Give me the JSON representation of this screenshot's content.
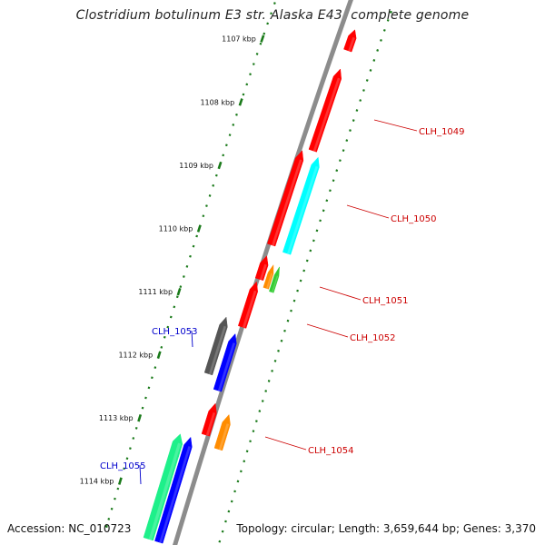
{
  "title": "Clostridium botulinum E3 str. Alaska E43, complete genome",
  "accession": "Accession: NC_010723",
  "summary": "Topology: circular; Length: 3,659,644 bp; Genes: 3,370",
  "ticks": [
    "1107 kbp",
    "1108 kbp",
    "1109 kbp",
    "1110 kbp",
    "1111 kbp",
    "1112 kbp",
    "1113 kbp",
    "1114 kbp"
  ],
  "genes": [
    {
      "name": "",
      "strand": "plus",
      "color": "#ff0000",
      "start": 1106.42,
      "end": 1106.75
    },
    {
      "name": "CLH_1049",
      "strand": "plus",
      "color": "#ff0000",
      "start": 1107.05,
      "end": 1108.35
    },
    {
      "name": "CLH_1050",
      "strand": "plus",
      "color": "#ff0000",
      "start": 1108.4,
      "end": 1109.9
    },
    {
      "name": "",
      "strand": "plus",
      "color": "#00ffff",
      "start": 1108.42,
      "end": 1109.95
    },
    {
      "name": "",
      "strand": "plus",
      "color": "#ff0000",
      "start": 1110.08,
      "end": 1110.45
    },
    {
      "name": "CLH_1051",
      "strand": "plus",
      "color": "#ff8c00",
      "start": 1110.18,
      "end": 1110.55
    },
    {
      "name": "",
      "strand": "plus",
      "color": "#33cc33",
      "start": 1110.18,
      "end": 1110.58
    },
    {
      "name": "CLH_1052",
      "strand": "plus",
      "color": "#ff0000",
      "start": 1110.5,
      "end": 1111.22
    },
    {
      "name": "CLH_1053",
      "strand": "minus",
      "color": "#555555",
      "start": 1111.15,
      "end": 1112.05
    },
    {
      "name": "",
      "strand": "minus",
      "color": "#0000ff",
      "start": 1111.35,
      "end": 1112.25
    },
    {
      "name": "",
      "strand": "plus",
      "color": "#ff0000",
      "start": 1112.45,
      "end": 1112.95
    },
    {
      "name": "CLH_1054",
      "strand": "plus",
      "color": "#ff8c00",
      "start": 1112.55,
      "end": 1113.1
    },
    {
      "name": "CLH_1055",
      "strand": "minus",
      "color": "#1ef08a",
      "start": 1113.05,
      "end": 1114.9
    },
    {
      "name": "",
      "strand": "minus",
      "color": "#0000ff",
      "start": 1113.05,
      "end": 1114.9
    }
  ],
  "colors": {
    "backbone": "#8c8c8c",
    "plus_label": "#cc0000",
    "minus_label": "#0000cc",
    "tick_dash": "#1a7a1a"
  }
}
